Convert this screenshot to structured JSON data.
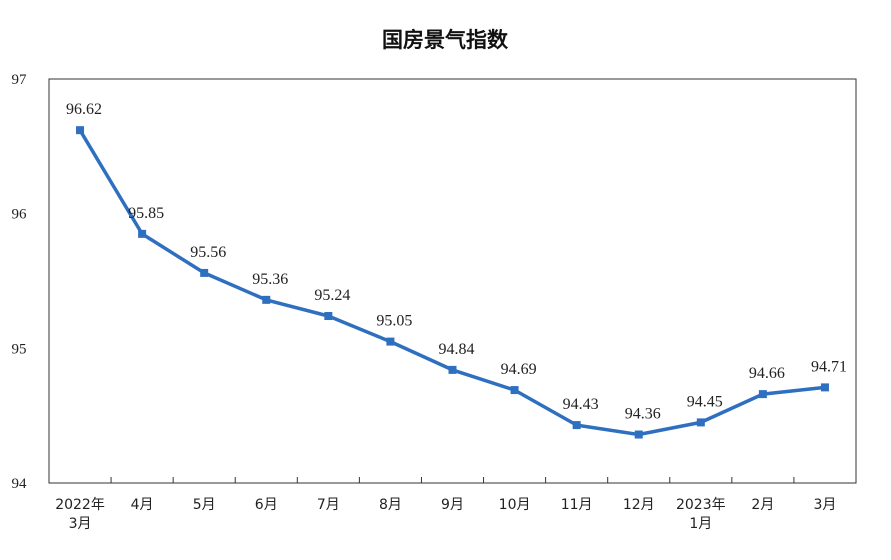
{
  "chart_data": {
    "type": "line",
    "title": "国房景气指数",
    "xlabel": "",
    "ylabel": "",
    "ylim": [
      94,
      97
    ],
    "yticks": [
      "97",
      "96",
      "95",
      "94"
    ],
    "categories": [
      [
        "2022年",
        "3月"
      ],
      [
        "4月"
      ],
      [
        "5月"
      ],
      [
        "6月"
      ],
      [
        "7月"
      ],
      [
        "8月"
      ],
      [
        "9月"
      ],
      [
        "10月"
      ],
      [
        "11月"
      ],
      [
        "12月"
      ],
      [
        "2023年",
        "1月"
      ],
      [
        "2月"
      ],
      [
        "3月"
      ]
    ],
    "series": [
      {
        "name": "国房景气指数",
        "color": "#2E6FC0",
        "values": [
          96.62,
          95.85,
          95.56,
          95.36,
          95.24,
          95.05,
          94.84,
          94.69,
          94.43,
          94.36,
          94.45,
          94.66,
          94.71
        ],
        "labels": [
          "96.62",
          "95.85",
          "95.56",
          "95.36",
          "95.24",
          "95.05",
          "94.84",
          "94.69",
          "94.43",
          "94.36",
          "94.45",
          "94.66",
          "94.71"
        ]
      }
    ],
    "grid": false,
    "legend": "none"
  }
}
